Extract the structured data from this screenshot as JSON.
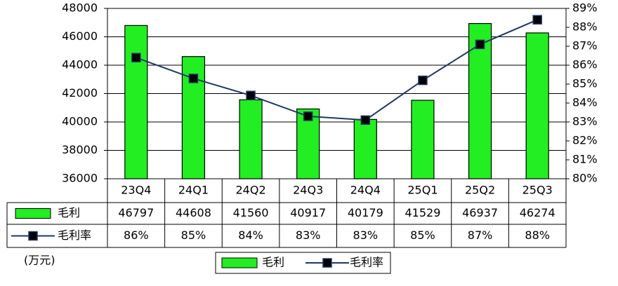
{
  "chart_data": {
    "type": "bar",
    "categories": [
      "23Q4",
      "24Q1",
      "24Q2",
      "24Q3",
      "24Q4",
      "25Q1",
      "25Q2",
      "25Q3"
    ],
    "series": [
      {
        "name": "毛利",
        "type": "bar",
        "color": "#22ee22",
        "values": [
          46797,
          44608,
          41560,
          40917,
          40179,
          41529,
          46937,
          46274
        ]
      },
      {
        "name": "毛利率",
        "type": "line",
        "axis": "y2",
        "color": "#1f3864",
        "values": [
          86.4,
          85.3,
          84.4,
          83.3,
          83.1,
          85.2,
          87.1,
          88.4
        ],
        "value_labels": [
          "86%",
          "85%",
          "84%",
          "83%",
          "83%",
          "85%",
          "87%",
          "88%"
        ]
      }
    ],
    "ylim": [
      36000,
      48000
    ],
    "yticks": [
      36000,
      38000,
      40000,
      42000,
      44000,
      46000,
      48000
    ],
    "y2lim": [
      80,
      89
    ],
    "y2ticks": [
      {
        "value": 80,
        "label": "80%"
      },
      {
        "value": 81,
        "label": "81%"
      },
      {
        "value": 82,
        "label": "82%"
      },
      {
        "value": 83,
        "label": "83%"
      },
      {
        "value": 84,
        "label": "84%"
      },
      {
        "value": 85,
        "label": "85%"
      },
      {
        "value": 86,
        "label": "86%"
      },
      {
        "value": 87,
        "label": "87%"
      },
      {
        "value": 88,
        "label": "88%"
      },
      {
        "value": 89,
        "label": "89%"
      }
    ],
    "grid": true,
    "annotation": "(万元)"
  }
}
